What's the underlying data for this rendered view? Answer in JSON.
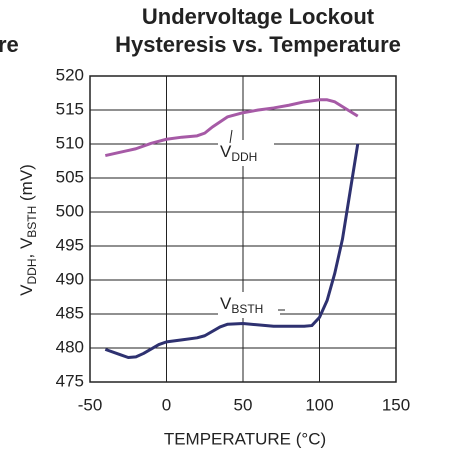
{
  "chart_data": {
    "type": "line",
    "title": [
      "Undervoltage Lockout",
      "Hysteresis vs. Temperature"
    ],
    "fragment": "re",
    "xlabel": "TEMPERATURE (°C)",
    "ylabel": [
      "V",
      "DDH",
      ", V",
      "BSTH",
      " (mV)"
    ],
    "xlim": [
      -50,
      150
    ],
    "xticks": [
      -50,
      0,
      50,
      100,
      150
    ],
    "ylim": [
      475,
      520
    ],
    "yticks": [
      475,
      480,
      485,
      490,
      495,
      500,
      505,
      510,
      515,
      520
    ],
    "grid": true,
    "series": [
      {
        "label": [
          "V",
          "DDH"
        ],
        "color": "#a65aa6",
        "x": [
          -40,
          -20,
          -10,
          0,
          10,
          20,
          25,
          30,
          40,
          50,
          60,
          70,
          80,
          90,
          100,
          105,
          110,
          120,
          125
        ],
        "values": [
          508.3,
          509.3,
          510.1,
          510.7,
          511.0,
          511.2,
          511.6,
          512.5,
          514.0,
          514.6,
          515.0,
          515.3,
          515.7,
          516.2,
          516.5,
          516.5,
          516.2,
          514.8,
          514.1
        ]
      },
      {
        "label": [
          "V",
          "BSTH"
        ],
        "color": "#2e3170",
        "x": [
          -40,
          -30,
          -25,
          -20,
          -15,
          -5,
          0,
          10,
          20,
          25,
          35,
          40,
          50,
          60,
          70,
          80,
          90,
          95,
          100,
          105,
          110,
          115,
          120,
          125
        ],
        "values": [
          479.8,
          479.0,
          478.6,
          478.7,
          479.2,
          480.5,
          480.9,
          481.2,
          481.5,
          481.8,
          483.1,
          483.5,
          483.6,
          483.4,
          483.2,
          483.2,
          483.2,
          483.3,
          484.5,
          487,
          491,
          496,
          503,
          510
        ]
      }
    ]
  }
}
